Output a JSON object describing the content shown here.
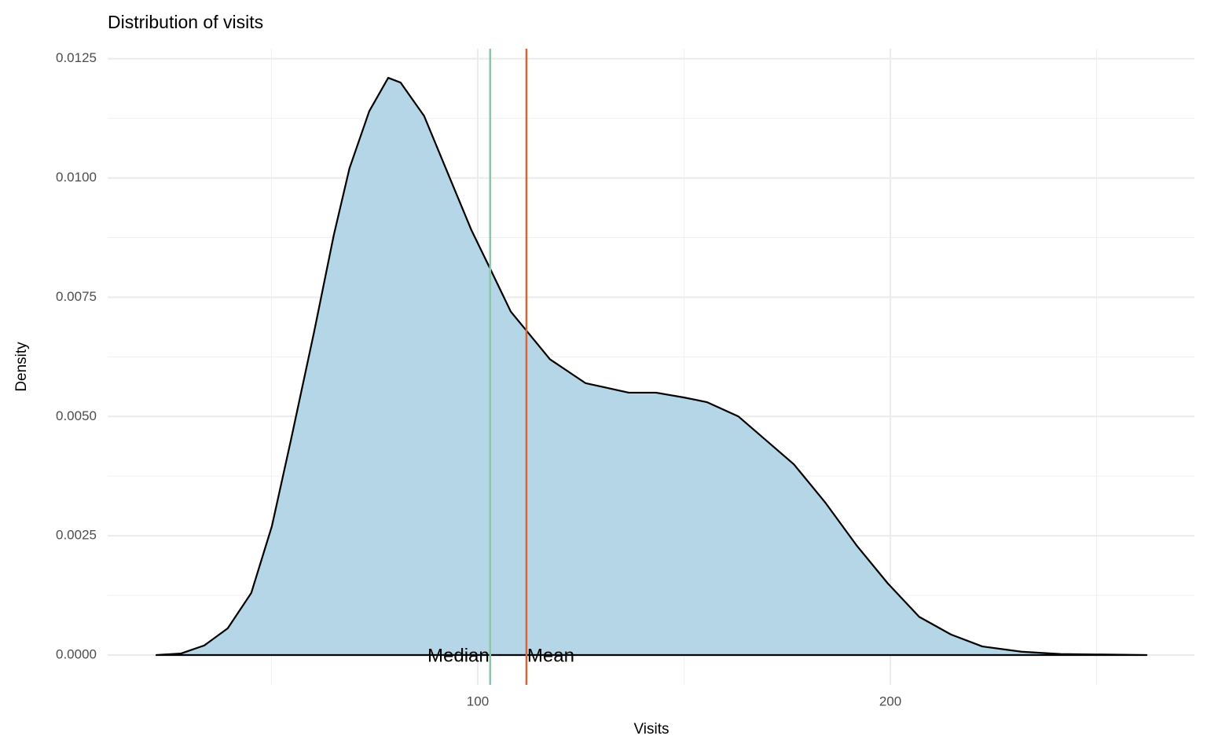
{
  "chart_data": {
    "type": "density",
    "title": "Distribution of visits",
    "xlabel": "Visits",
    "ylabel": "Density",
    "x": [
      22.1,
      28.0,
      33.7,
      39.4,
      45.1,
      50.1,
      54.7,
      60.4,
      65.1,
      68.9,
      73.7,
      78.3,
      81.3,
      87.0,
      93.7,
      98.5,
      103.0,
      108.0,
      111.8,
      117.5,
      126.1,
      136.6,
      143.2,
      149.9,
      155.6,
      163.2,
      169.9,
      176.6,
      184.2,
      191.8,
      199.4,
      207.0,
      214.7,
      222.3,
      231.8,
      241.3,
      262.1
    ],
    "values": [
      0,
      3e-05,
      0.0002,
      0.00056,
      0.0013,
      0.0027,
      0.0045,
      0.0068,
      0.0088,
      0.0102,
      0.0114,
      0.0121,
      0.012,
      0.0113,
      0.0099,
      0.0089,
      0.0081,
      0.0072,
      0.0068,
      0.0062,
      0.0057,
      0.0055,
      0.0055,
      0.0054,
      0.0053,
      0.005,
      0.0045,
      0.004,
      0.0032,
      0.0023,
      0.0015,
      0.0008,
      0.00043,
      0.00018,
      7e-05,
      2e-05,
      0
    ],
    "color": "#b4d6e6",
    "line_color": "#000000",
    "vlines": [
      {
        "label": "Median",
        "value": 103.0,
        "color": "#8dc5ab"
      },
      {
        "label": "Mean",
        "value": 111.8,
        "color": "#d2663a"
      }
    ],
    "xlim": [
      10.3,
      273.7
    ],
    "ylim": [
      -0.000626,
      0.01271
    ],
    "xticks": [
      100,
      200
    ],
    "xminor": [
      50,
      150,
      250
    ],
    "yticks": [
      {
        "value": 0,
        "label": "0.0000"
      },
      {
        "value": 0.0025,
        "label": "0.0025"
      },
      {
        "value": 0.005,
        "label": "0.0050"
      },
      {
        "value": 0.0075,
        "label": "0.0075"
      },
      {
        "value": 0.01,
        "label": "0.0100"
      },
      {
        "value": 0.0125,
        "label": "0.0125"
      }
    ],
    "yminor": [
      0.00125,
      0.00375,
      0.00625,
      0.00875,
      0.01125
    ],
    "grid": true
  }
}
